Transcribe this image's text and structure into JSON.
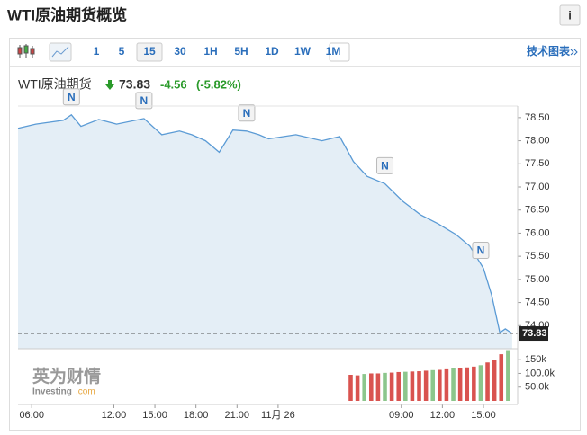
{
  "header": {
    "title": "WTI原油期货概览",
    "info": "i"
  },
  "toolbar": {
    "intervals": [
      "1",
      "5",
      "15",
      "30",
      "1H",
      "5H",
      "1D",
      "1W",
      "1M"
    ],
    "active": "15",
    "link": "技术图表"
  },
  "quote": {
    "name": "WTI原油期货",
    "price": 73.83,
    "change": -4.56,
    "change_pct": {
      "value": -5.82,
      "label": "(-5.82%)"
    }
  },
  "watermark": {
    "brand": "英为财情",
    "site": "Investing",
    "domain": ".com"
  },
  "chart_data": [
    {
      "type": "line",
      "color": "#5b9bd5",
      "fill": "#e4eef6",
      "grid": false,
      "x": [
        5,
        6.3,
        8.3,
        8.9,
        9.6,
        10.9,
        12.2,
        14.2,
        15.5,
        16.8,
        17.7,
        18.7,
        19.7,
        20.7,
        21.7,
        22.6,
        23.3,
        25.3,
        27.2,
        28.5,
        29.5,
        30.5,
        31.8,
        33.1,
        34.4,
        35.7,
        37.0,
        38.0,
        39.0,
        39.6,
        40.2,
        40.6,
        41.1
      ],
      "values": [
        78.27,
        78.36,
        78.44,
        78.56,
        78.31,
        78.46,
        78.36,
        78.48,
        78.13,
        78.21,
        78.13,
        78.0,
        77.75,
        78.23,
        78.21,
        78.13,
        78.04,
        78.13,
        78.0,
        78.09,
        77.55,
        77.23,
        77.07,
        76.69,
        76.4,
        76.2,
        75.97,
        75.72,
        75.24,
        74.66,
        73.85,
        73.93,
        73.83
      ],
      "xlim": [
        5,
        41.5
      ],
      "xticks": [
        {
          "value": 6,
          "label": "06:00"
        },
        {
          "value": 12,
          "label": "12:00"
        },
        {
          "value": 15,
          "label": "15:00"
        },
        {
          "value": 18,
          "label": "18:00"
        },
        {
          "value": 21,
          "label": "21:00"
        },
        {
          "value": 24,
          "label": "11月 26"
        },
        {
          "value": 33,
          "label": "09:00"
        },
        {
          "value": 36,
          "label": "12:00"
        },
        {
          "value": 39,
          "label": "15:00"
        }
      ],
      "ylim": [
        73.5,
        78.75
      ],
      "yticks": [
        {
          "value": 74,
          "label": "74.00"
        },
        {
          "value": 74.5,
          "label": "74.50"
        },
        {
          "value": 75,
          "label": "75.00"
        },
        {
          "value": 75.5,
          "label": "75.50"
        },
        {
          "value": 76,
          "label": "76.00"
        },
        {
          "value": 76.5,
          "label": "76.50"
        },
        {
          "value": 77,
          "label": "77.00"
        },
        {
          "value": 77.5,
          "label": "77.50"
        },
        {
          "value": 78,
          "label": "78.00"
        },
        {
          "value": 78.5,
          "label": "78.50"
        }
      ],
      "events": [
        {
          "x": 8.9,
          "label": "N"
        },
        {
          "x": 14.2,
          "label": "N"
        },
        {
          "x": 21.7,
          "label": "N"
        },
        {
          "x": 31.8,
          "label": "N"
        },
        {
          "x": 38.8,
          "label": "N"
        }
      ]
    },
    {
      "type": "bar",
      "x": [
        29.3,
        29.8,
        30.3,
        30.8,
        31.3,
        31.8,
        32.3,
        32.8,
        33.3,
        33.8,
        34.3,
        34.8,
        35.3,
        35.8,
        36.3,
        36.8,
        37.3,
        37.8,
        38.3,
        38.8,
        39.3,
        39.8,
        40.3,
        40.8
      ],
      "values": [
        95000,
        93000,
        98000,
        100000,
        100000,
        102000,
        103000,
        105000,
        106000,
        107000,
        108000,
        110000,
        112000,
        113000,
        115000,
        118000,
        120000,
        122000,
        125000,
        130000,
        140000,
        150000,
        170000,
        185000
      ],
      "colors": [
        "#d9534f",
        "#d9534f",
        "#8cc68c",
        "#d9534f",
        "#d9534f",
        "#8cc68c",
        "#d9534f",
        "#d9534f",
        "#8cc68c",
        "#d9534f",
        "#d9534f",
        "#d9534f",
        "#8cc68c",
        "#d9534f",
        "#d9534f",
        "#8cc68c",
        "#d9534f",
        "#d9534f",
        "#d9534f",
        "#8cc68c",
        "#d9534f",
        "#d9534f",
        "#d9534f",
        "#8cc68c"
      ],
      "xlim": [
        5,
        41.5
      ],
      "ylim": [
        0,
        190000
      ],
      "yticks": [
        {
          "value": 50000,
          "label": "50.0k"
        },
        {
          "value": 100000,
          "label": "100.0k"
        },
        {
          "value": 150000,
          "label": "150k"
        }
      ]
    }
  ]
}
